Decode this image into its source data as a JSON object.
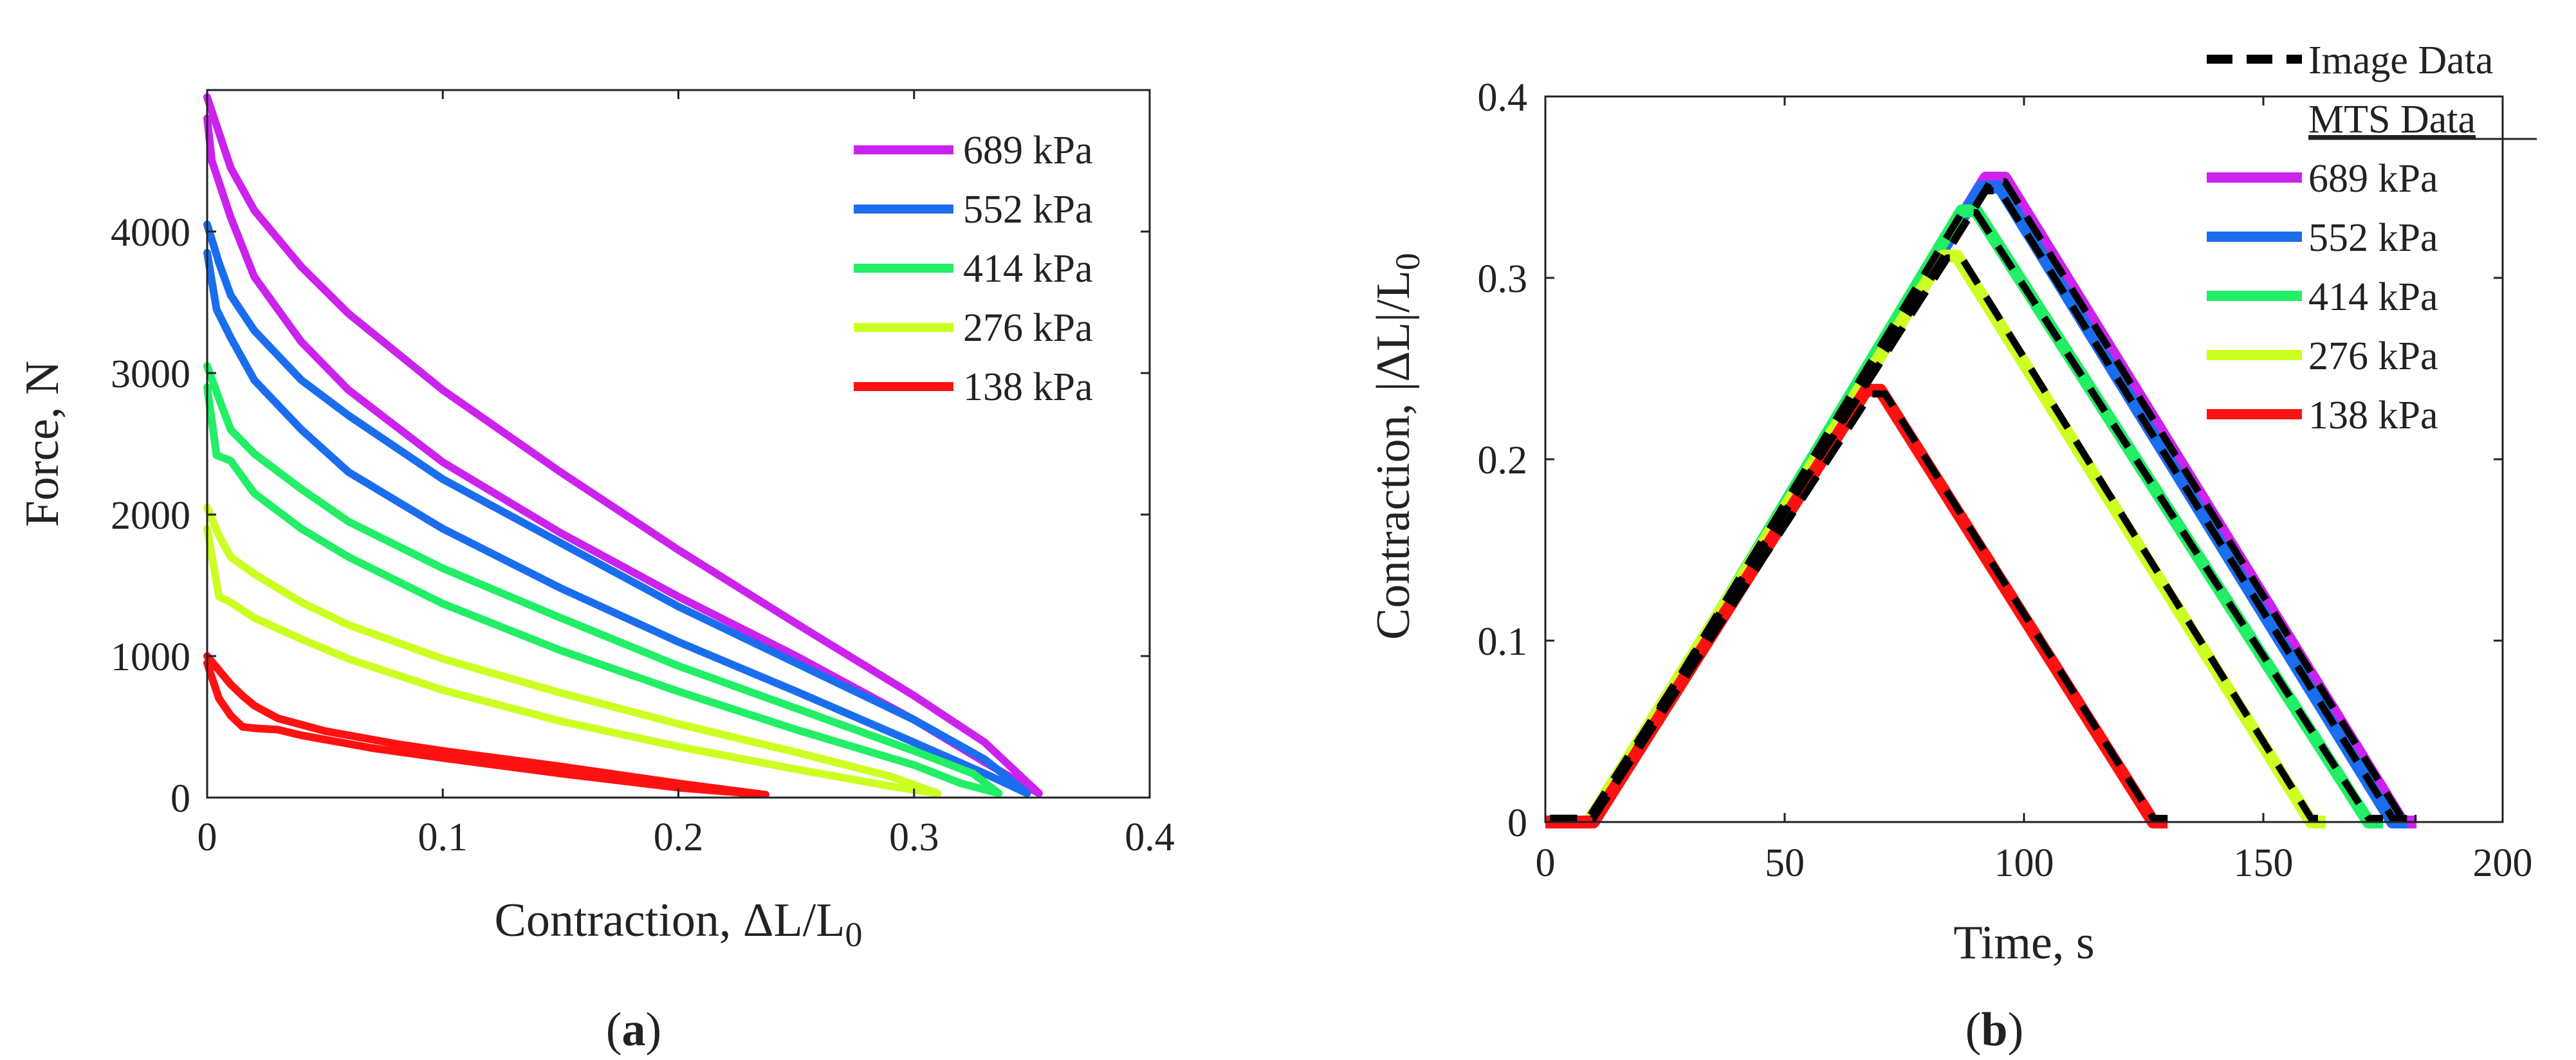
{
  "figure_captions": [
    {
      "open": "(",
      "letter": "a",
      "close": ")"
    },
    {
      "open": "(",
      "letter": "b",
      "close": ")"
    }
  ],
  "chart_data": [
    {
      "type": "line",
      "panel": "a",
      "title": "",
      "xlabel": {
        "text": "Contraction, ΔL/L",
        "subscript": "0"
      },
      "ylabel": "Force, N",
      "xlim": [
        0,
        0.4
      ],
      "ylim": [
        0,
        5000
      ],
      "xticks": [
        0,
        0.1,
        0.2,
        0.3,
        0.4
      ],
      "xtick_labels": [
        "0",
        "0.1",
        "0.2",
        "0.3",
        "0.4"
      ],
      "yticks": [
        0,
        1000,
        2000,
        3000,
        4000
      ],
      "ytick_labels": [
        "0",
        "1000",
        "2000",
        "3000",
        "4000"
      ],
      "grid": false,
      "legend_position": "top-right",
      "legend": [
        "689 kPa",
        "552 kPa",
        "414 kPa",
        "276 kPa",
        "138 kPa"
      ],
      "series": [
        {
          "name": "689 kPa",
          "color": "#cc22ee",
          "upper": [
            [
              0,
              4950
            ],
            [
              0.005,
              4700
            ],
            [
              0.01,
              4450
            ],
            [
              0.02,
              4150
            ],
            [
              0.04,
              3750
            ],
            [
              0.06,
              3420
            ],
            [
              0.1,
              2880
            ],
            [
              0.15,
              2300
            ],
            [
              0.2,
              1750
            ],
            [
              0.25,
              1230
            ],
            [
              0.3,
              720
            ],
            [
              0.33,
              390
            ],
            [
              0.353,
              30
            ]
          ],
          "lower": [
            [
              0.353,
              30
            ],
            [
              0.33,
              250
            ],
            [
              0.3,
              550
            ],
            [
              0.25,
              1000
            ],
            [
              0.2,
              1420
            ],
            [
              0.15,
              1870
            ],
            [
              0.1,
              2370
            ],
            [
              0.06,
              2880
            ],
            [
              0.04,
              3220
            ],
            [
              0.02,
              3680
            ],
            [
              0.01,
              4100
            ],
            [
              0.002,
              4500
            ],
            [
              0,
              4800
            ]
          ]
        },
        {
          "name": "552 kPa",
          "color": "#1a6eee",
          "upper": [
            [
              0,
              4050
            ],
            [
              0.005,
              3780
            ],
            [
              0.01,
              3550
            ],
            [
              0.02,
              3300
            ],
            [
              0.04,
              2950
            ],
            [
              0.06,
              2700
            ],
            [
              0.1,
              2250
            ],
            [
              0.15,
              1800
            ],
            [
              0.2,
              1350
            ],
            [
              0.25,
              950
            ],
            [
              0.3,
              550
            ],
            [
              0.33,
              270
            ],
            [
              0.348,
              30
            ]
          ],
          "lower": [
            [
              0.348,
              30
            ],
            [
              0.33,
              170
            ],
            [
              0.3,
              390
            ],
            [
              0.25,
              750
            ],
            [
              0.2,
              1100
            ],
            [
              0.15,
              1480
            ],
            [
              0.1,
              1900
            ],
            [
              0.06,
              2300
            ],
            [
              0.04,
              2600
            ],
            [
              0.02,
              2950
            ],
            [
              0.01,
              3250
            ],
            [
              0.004,
              3450
            ],
            [
              0,
              3850
            ]
          ]
        },
        {
          "name": "414 kPa",
          "color": "#22ee66",
          "upper": [
            [
              0,
              3050
            ],
            [
              0.005,
              2820
            ],
            [
              0.01,
              2600
            ],
            [
              0.02,
              2430
            ],
            [
              0.04,
              2180
            ],
            [
              0.06,
              1950
            ],
            [
              0.1,
              1620
            ],
            [
              0.15,
              1270
            ],
            [
              0.2,
              930
            ],
            [
              0.25,
              630
            ],
            [
              0.3,
              330
            ],
            [
              0.325,
              170
            ],
            [
              0.336,
              30
            ]
          ],
          "lower": [
            [
              0.336,
              30
            ],
            [
              0.32,
              100
            ],
            [
              0.3,
              230
            ],
            [
              0.25,
              480
            ],
            [
              0.2,
              750
            ],
            [
              0.15,
              1040
            ],
            [
              0.1,
              1370
            ],
            [
              0.06,
              1700
            ],
            [
              0.04,
              1900
            ],
            [
              0.02,
              2150
            ],
            [
              0.01,
              2380
            ],
            [
              0.004,
              2420
            ],
            [
              0,
              2900
            ]
          ]
        },
        {
          "name": "276 kPa",
          "color": "#ccff22",
          "upper": [
            [
              0,
              2050
            ],
            [
              0.005,
              1850
            ],
            [
              0.01,
              1700
            ],
            [
              0.02,
              1580
            ],
            [
              0.04,
              1380
            ],
            [
              0.06,
              1220
            ],
            [
              0.1,
              980
            ],
            [
              0.15,
              740
            ],
            [
              0.2,
              520
            ],
            [
              0.25,
              320
            ],
            [
              0.29,
              150
            ],
            [
              0.31,
              30
            ]
          ],
          "lower": [
            [
              0.31,
              30
            ],
            [
              0.29,
              80
            ],
            [
              0.25,
              200
            ],
            [
              0.2,
              360
            ],
            [
              0.15,
              540
            ],
            [
              0.1,
              760
            ],
            [
              0.06,
              980
            ],
            [
              0.04,
              1120
            ],
            [
              0.02,
              1270
            ],
            [
              0.01,
              1380
            ],
            [
              0.005,
              1420
            ],
            [
              0,
              1900
            ]
          ]
        },
        {
          "name": "138 kPa",
          "color": "#ff1111",
          "upper": [
            [
              0,
              1000
            ],
            [
              0.005,
              900
            ],
            [
              0.01,
              800
            ],
            [
              0.015,
              720
            ],
            [
              0.02,
              650
            ],
            [
              0.03,
              560
            ],
            [
              0.05,
              470
            ],
            [
              0.08,
              380
            ],
            [
              0.1,
              330
            ],
            [
              0.15,
              220
            ],
            [
              0.2,
              100
            ],
            [
              0.237,
              20
            ]
          ],
          "lower": [
            [
              0.237,
              20
            ],
            [
              0.2,
              70
            ],
            [
              0.15,
              170
            ],
            [
              0.1,
              280
            ],
            [
              0.07,
              350
            ],
            [
              0.04,
              440
            ],
            [
              0.03,
              480
            ],
            [
              0.02,
              490
            ],
            [
              0.015,
              500
            ],
            [
              0.01,
              580
            ],
            [
              0.005,
              700
            ],
            [
              0,
              950
            ]
          ]
        }
      ]
    },
    {
      "type": "line",
      "panel": "b",
      "title": "",
      "xlabel": {
        "text": "Time, s"
      },
      "ylabel": {
        "text": "Contraction, |ΔL|/L",
        "subscript": "0"
      },
      "xlim": [
        0,
        200
      ],
      "ylim": [
        0,
        0.4
      ],
      "xticks": [
        0,
        50,
        100,
        150,
        200
      ],
      "xtick_labels": [
        "0",
        "50",
        "100",
        "150",
        "200"
      ],
      "yticks": [
        0,
        0.1,
        0.2,
        0.3,
        0.4
      ],
      "ytick_labels": [
        "0",
        "0.1",
        "0.2",
        "0.3",
        "0.4"
      ],
      "grid": false,
      "legend_position": "top-right",
      "legend": {
        "image_label": "Image Data",
        "group_header": "MTS Data",
        "entries": [
          "689 kPa",
          "552 kPa",
          "414 kPa",
          "276 kPa",
          "138 kPa"
        ]
      },
      "series": [
        {
          "name": "689 kPa",
          "color": "#cc22ee",
          "points": [
            [
              0,
              0
            ],
            [
              10,
              0
            ],
            [
              92,
              0.355
            ],
            [
              96,
              0.355
            ],
            [
              179,
              0
            ],
            [
              182,
              0
            ]
          ]
        },
        {
          "name": "552 kPa",
          "color": "#1a6eee",
          "points": [
            [
              0,
              0
            ],
            [
              10,
              0
            ],
            [
              91,
              0.35
            ],
            [
              95,
              0.35
            ],
            [
              177,
              0
            ],
            [
              180,
              0
            ]
          ]
        },
        {
          "name": "414 kPa",
          "color": "#22ee66",
          "points": [
            [
              0,
              0
            ],
            [
              10,
              0
            ],
            [
              87,
              0.337
            ],
            [
              90,
              0.337
            ],
            [
              172,
              0
            ],
            [
              175,
              0
            ]
          ]
        },
        {
          "name": "276 kPa",
          "color": "#ccff22",
          "points": [
            [
              0,
              0
            ],
            [
              9,
              0
            ],
            [
              83,
              0.312
            ],
            [
              86,
              0.312
            ],
            [
              160,
              0
            ],
            [
              163,
              0
            ]
          ]
        },
        {
          "name": "138 kPa",
          "color": "#ff1111",
          "points": [
            [
              0,
              0
            ],
            [
              10,
              0
            ],
            [
              67,
              0.238
            ],
            [
              70,
              0.238
            ],
            [
              127,
              0
            ],
            [
              130,
              0
            ]
          ]
        }
      ],
      "image_data": {
        "name": "Image Data",
        "color": "#000000",
        "tracks": [
          [
            [
              1,
              0.002
            ],
            [
              10,
              0.002
            ],
            [
              93,
              0.353
            ],
            [
              96,
              0.353
            ],
            [
              179,
              0.002
            ],
            [
              182,
              0.002
            ]
          ],
          [
            [
              1,
              0.002
            ],
            [
              10,
              0.002
            ],
            [
              92,
              0.348
            ],
            [
              95,
              0.348
            ],
            [
              177,
              0.002
            ],
            [
              180,
              0.002
            ]
          ],
          [
            [
              1,
              0.002
            ],
            [
              10,
              0.002
            ],
            [
              87,
              0.336
            ],
            [
              90,
              0.336
            ],
            [
              172,
              0.002
            ],
            [
              175,
              0.002
            ]
          ],
          [
            [
              1,
              0.002
            ],
            [
              9,
              0.002
            ],
            [
              84,
              0.311
            ],
            [
              87,
              0.311
            ],
            [
              160,
              0.002
            ],
            [
              163,
              0.002
            ]
          ],
          [
            [
              1,
              0.002
            ],
            [
              10,
              0.002
            ],
            [
              68,
              0.236
            ],
            [
              71,
              0.236
            ],
            [
              127,
              0.002
            ],
            [
              130,
              0.002
            ]
          ]
        ]
      }
    }
  ]
}
